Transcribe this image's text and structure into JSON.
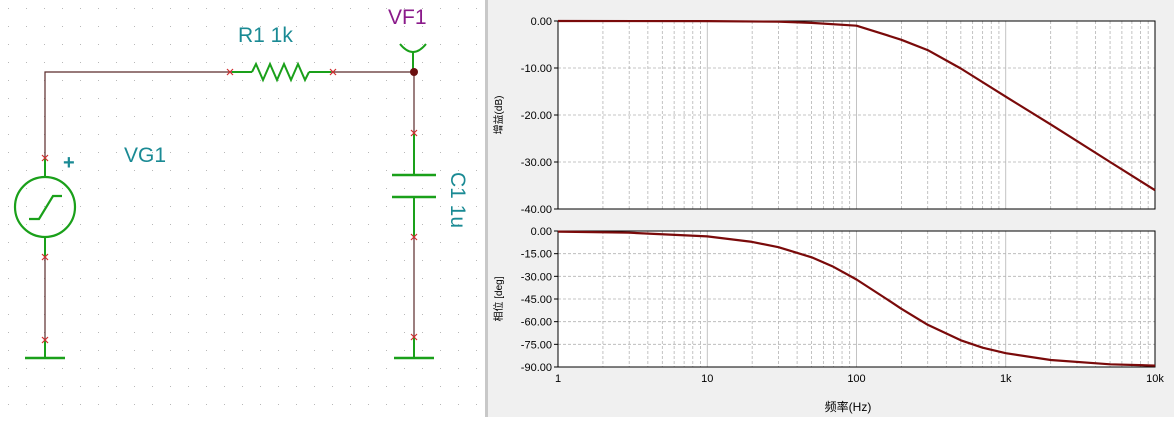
{
  "schematic": {
    "resistor_label": "R1 1k",
    "probe_label": "VF1",
    "source_label": "VG1",
    "capacitor_label": "C1 1u",
    "source_polarity": "+",
    "colors": {
      "wire": "#5a2a2a",
      "component": "#1aa01a",
      "pin_marker": "#d03030",
      "label": "#1a8a94",
      "probe_label": "#8a1a8a"
    }
  },
  "plot_window": {
    "x_tick_labels": [
      "1",
      "10",
      "100",
      "1k",
      "10k"
    ],
    "x_axis_label": "频率(Hz)",
    "colors": {
      "curve": "#7a0a0a",
      "grid": "#b4b4b4",
      "panel_bg": "#f0f0f0"
    }
  },
  "chart_data": [
    {
      "type": "line",
      "title": "",
      "xlabel": "频率(Hz)",
      "ylabel": "增益(dB)",
      "xscale": "log",
      "xlim": [
        1,
        10000
      ],
      "ylim": [
        -40,
        0
      ],
      "y_tick_labels": [
        "0.00",
        "-10.00",
        "-20.00",
        "-30.00",
        "-40.00"
      ],
      "grid": true,
      "series": [
        {
          "x": [
            1,
            10,
            30,
            50,
            100,
            159,
            200,
            300,
            500,
            1000,
            2000,
            5000,
            10000
          ],
          "y": [
            0.0,
            -0.02,
            -0.15,
            -0.4,
            -1.0,
            -3.0,
            -4.0,
            -6.2,
            -10.1,
            -16.1,
            -22.0,
            -30.0,
            -36.0
          ]
        }
      ]
    },
    {
      "type": "line",
      "title": "",
      "xlabel": "频率(Hz)",
      "ylabel": "相位 [deg]",
      "xscale": "log",
      "xlim": [
        1,
        10000
      ],
      "ylim": [
        -90,
        0
      ],
      "y_tick_labels": [
        "0.00",
        "-15.00",
        "-30.00",
        "-45.00",
        "-60.00",
        "-75.00",
        "-90.00"
      ],
      "grid": true,
      "series": [
        {
          "x": [
            1,
            3,
            10,
            20,
            30,
            50,
            70,
            100,
            159,
            200,
            300,
            500,
            700,
            1000,
            2000,
            5000,
            10000
          ],
          "y": [
            -0.4,
            -1.1,
            -3.6,
            -7.2,
            -10.7,
            -17.4,
            -23.7,
            -32.1,
            -45.0,
            -51.5,
            -62.1,
            -72.3,
            -77.2,
            -80.9,
            -85.4,
            -88.2,
            -89.1
          ]
        }
      ]
    }
  ]
}
